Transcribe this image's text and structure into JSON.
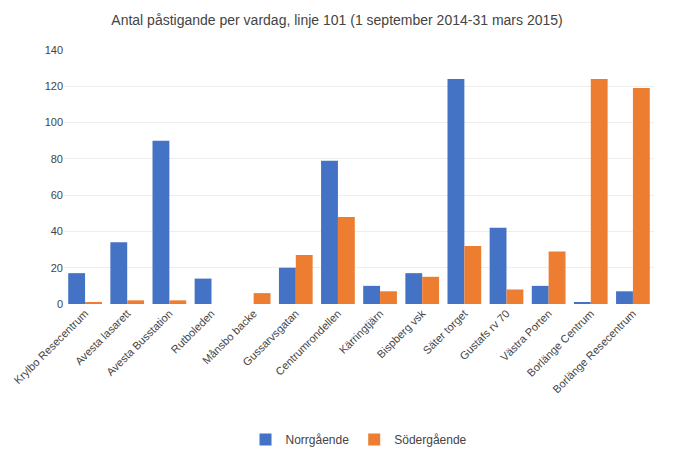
{
  "chart_data": {
    "type": "bar",
    "title": "Antal påstigande per vardag, linje 101 (1 september 2014-31 mars 2015)",
    "categories": [
      "Krylbo Resecentrum",
      "Avesta lasarett",
      "Avesta Busstation",
      "Rutboleden",
      "Månsbo backe",
      "Gussarvsgatan",
      "Centrumrondellen",
      "Kärringtjärn",
      "Bispberg vsk",
      "Säter torget",
      "Gustafs rv 70",
      "Västra Porten",
      "Borlänge Centrum",
      "Borlänge Resecentrum"
    ],
    "series": [
      {
        "name": "Norrgående",
        "color": "#4472C4",
        "values": [
          17,
          34,
          90,
          14,
          0,
          20,
          79,
          10,
          17,
          124,
          42,
          10,
          1,
          7
        ]
      },
      {
        "name": "Södergående",
        "color": "#ED7D31",
        "values": [
          1,
          2,
          2,
          0,
          6,
          27,
          48,
          7,
          15,
          32,
          8,
          29,
          124,
          119
        ]
      }
    ],
    "ylim": [
      0,
      140
    ],
    "yticks": [
      0,
      20,
      40,
      60,
      80,
      100,
      120,
      140
    ],
    "grid": true,
    "legend": "bottom"
  }
}
